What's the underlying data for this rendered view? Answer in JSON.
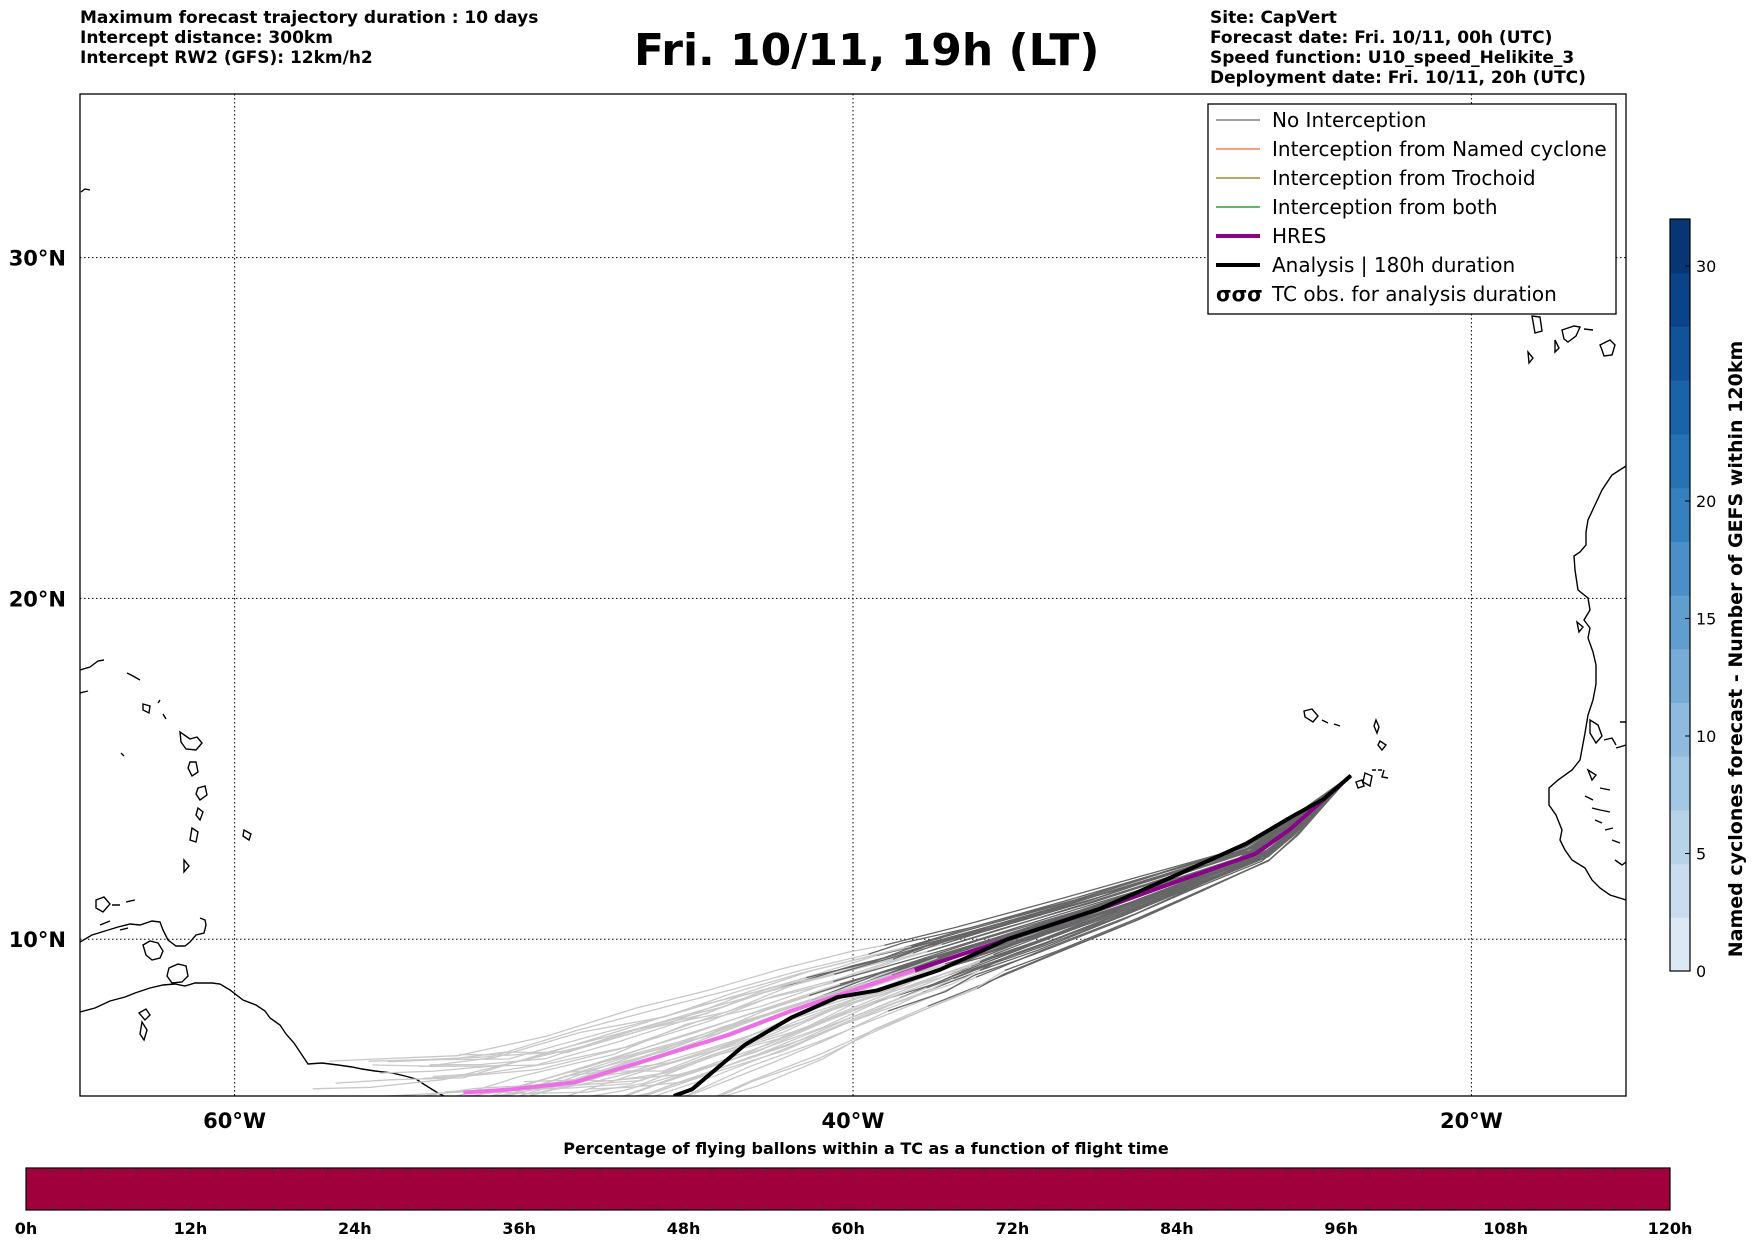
{
  "header_left": [
    "Maximum forecast trajectory duration : 10 days",
    "Intercept distance: 300km",
    "Intercept RW2 (GFS):  12km/h2"
  ],
  "title": "Fri. 10/11, 19h (LT)",
  "header_right": [
    "Site: CapVert",
    "Forecast date: Fri. 10/11, 00h (UTC)",
    "Speed function: U10_speed_Helikite_3",
    "Deployment date: Fri. 10/11, 20h (UTC)"
  ],
  "map": {
    "lon_range": [
      -65,
      -15
    ],
    "lat_range": [
      5.4,
      34.8
    ],
    "lat_labels": [
      {
        "v": 30,
        "t": "30°N"
      },
      {
        "v": 20,
        "t": "20°N"
      },
      {
        "v": 10,
        "t": "10°N"
      }
    ],
    "lon_labels": [
      {
        "v": -60,
        "t": "60°W"
      },
      {
        "v": -40,
        "t": "40°W"
      },
      {
        "v": -20,
        "t": "20°W"
      }
    ],
    "legend": [
      {
        "label": "No Interception",
        "color": "#808080",
        "style": "thin"
      },
      {
        "label": "Interception from Named cyclone",
        "color": "#ff7f50",
        "style": "thin"
      },
      {
        "label": "Interception from Trochoid",
        "color": "#9a8a3a",
        "style": "thin"
      },
      {
        "label": "Interception from both",
        "color": "#2ca02c",
        "style": "thin"
      },
      {
        "label": "HRES",
        "color": "#8b008b",
        "style": "thick"
      },
      {
        "label": "Analysis | 180h duration",
        "color": "#000000",
        "style": "thick"
      },
      {
        "label": "TC obs. for analysis duration",
        "color": "#000000",
        "style": "symbols"
      }
    ],
    "trajectories": {
      "start": [
        -23.9,
        14.8
      ],
      "analysis": [
        [
          -23.9,
          14.8
        ],
        [
          -24.8,
          14.1
        ],
        [
          -25.8,
          13.6
        ],
        [
          -27.3,
          12.8
        ],
        [
          -29.5,
          11.9
        ],
        [
          -32.0,
          10.9
        ],
        [
          -35.0,
          10.0
        ],
        [
          -37.2,
          9.1
        ],
        [
          -39.2,
          8.5
        ],
        [
          -40.5,
          8.3
        ],
        [
          -42.0,
          7.7
        ],
        [
          -43.5,
          6.9
        ],
        [
          -45.2,
          5.6
        ],
        [
          -45.8,
          5.4
        ]
      ],
      "hres_dark": [
        [
          -23.9,
          14.8
        ],
        [
          -24.9,
          14.0
        ],
        [
          -25.9,
          13.2
        ],
        [
          -27.0,
          12.5
        ],
        [
          -29.5,
          11.7
        ],
        [
          -32.0,
          10.9
        ],
        [
          -35.0,
          10.0
        ],
        [
          -37.0,
          9.4
        ],
        [
          -38.0,
          9.1
        ]
      ],
      "hres_light": [
        [
          -38.0,
          9.1
        ],
        [
          -40.0,
          8.5
        ],
        [
          -42.0,
          7.9
        ],
        [
          -44.0,
          7.2
        ],
        [
          -46.5,
          6.5
        ],
        [
          -49.0,
          5.8
        ],
        [
          -51.0,
          5.6
        ],
        [
          -52.6,
          5.5
        ]
      ]
    }
  },
  "colorbar_right": {
    "title": "Named cyclones forecast - Number of GEFS within 120km",
    "range": [
      0,
      32
    ],
    "ticks": [
      "0",
      "5",
      "10",
      "15",
      "20",
      "30"
    ],
    "tick_values": [
      0,
      5,
      10,
      15,
      20,
      30
    ],
    "colors": [
      "#dde8f5",
      "#cadcef",
      "#b7d3ea",
      "#a3c8e4",
      "#8ebbdd",
      "#76acd6",
      "#5f9ecf",
      "#4a8fc7",
      "#3780bf",
      "#2771b5",
      "#1a62aa",
      "#10539b",
      "#09438a",
      "#083675"
    ]
  },
  "colorbar_bottom": {
    "title": "Percentage of flying ballons within a TC as a function of flight time",
    "labels": [
      "0h",
      "12h",
      "24h",
      "36h",
      "48h",
      "60h",
      "72h",
      "84h",
      "96h",
      "108h",
      "120h"
    ],
    "fill_color": "#a0003c",
    "fraction_shown": 0
  }
}
